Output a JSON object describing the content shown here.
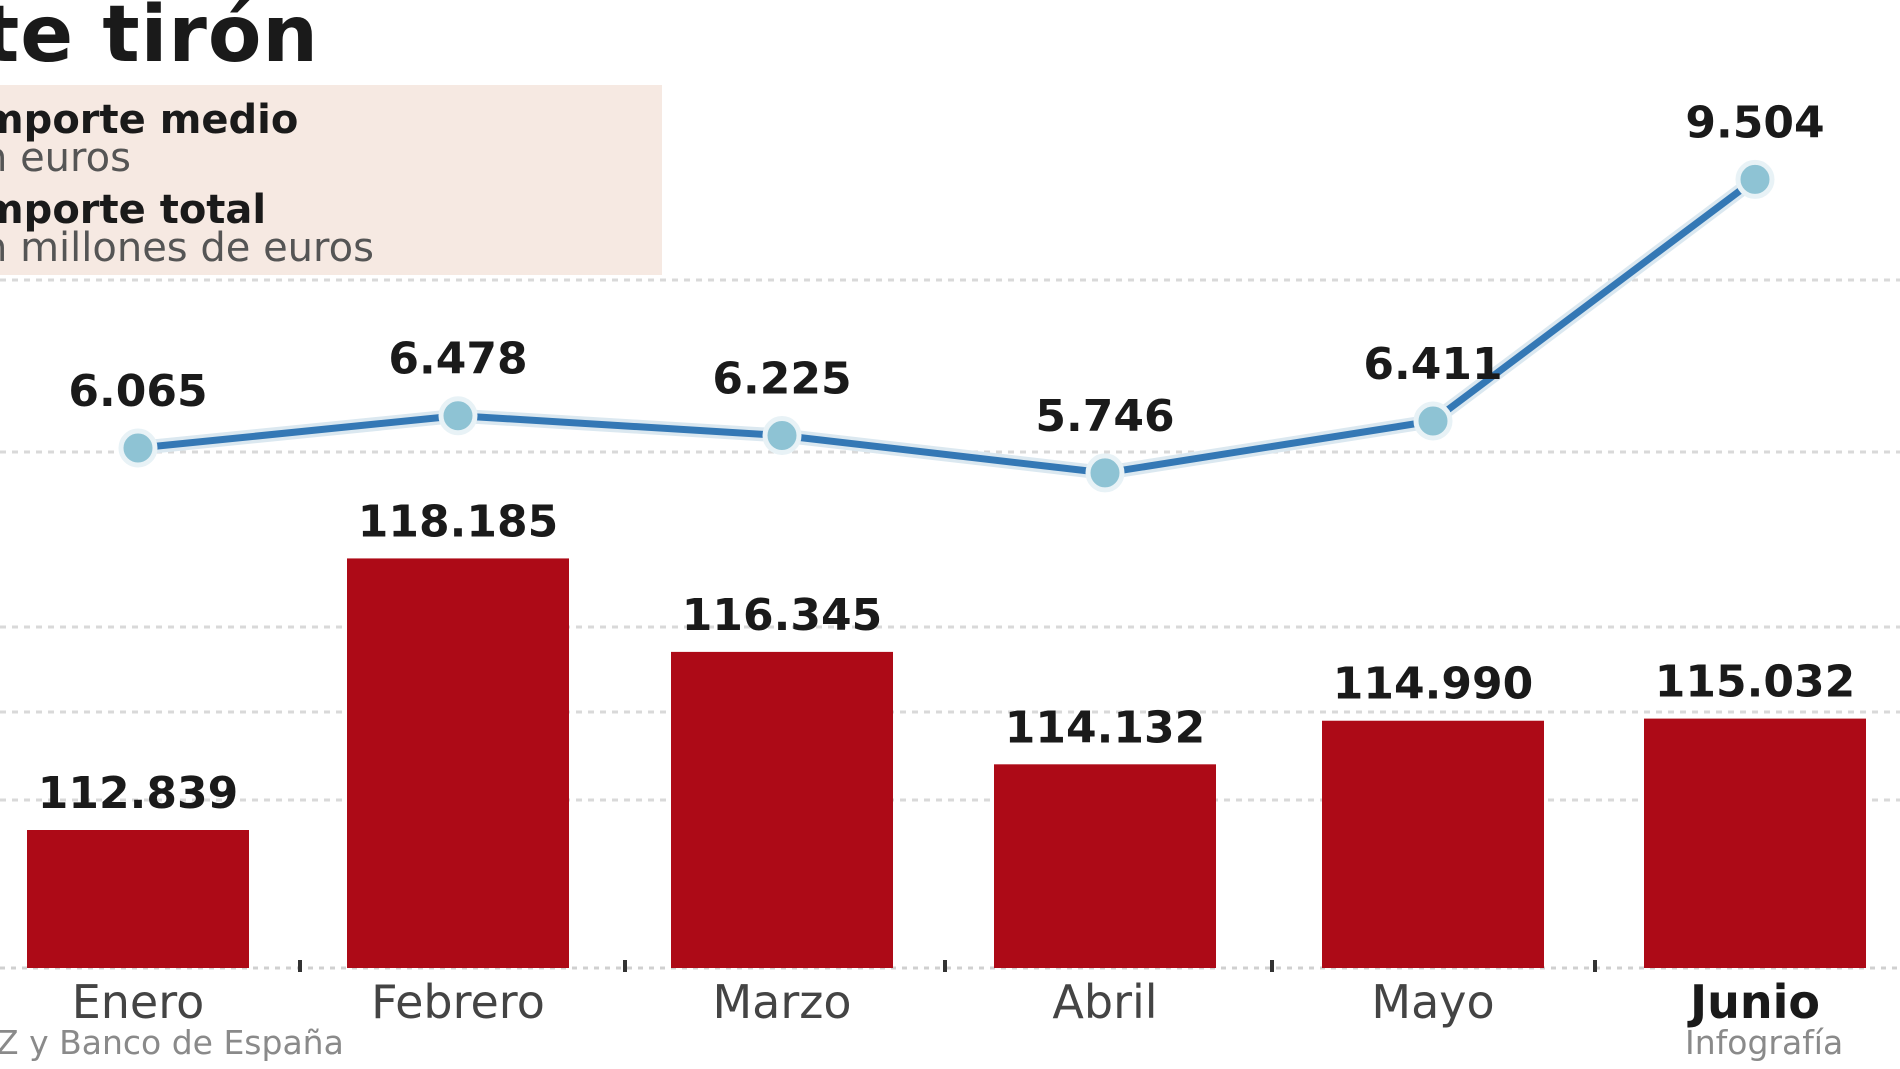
{
  "title": "te tirón",
  "legend": {
    "line_label": "mporte medio",
    "line_unit": "n euros",
    "bar_label": "mporte total",
    "bar_unit": "n millones de euros"
  },
  "footer": {
    "source": "Z y Banco de España",
    "credit": "Infografía"
  },
  "colors": {
    "bar": "#ad0a17",
    "line": "#3478b5",
    "marker": "#8ec3d4",
    "legend_bg": "#f6e9e2",
    "grid": "#d9d9d9"
  },
  "chart_data": {
    "type": "bar",
    "categories": [
      "Enero",
      "Febrero",
      "Marzo",
      "Abril",
      "Mayo",
      "Junio"
    ],
    "series": [
      {
        "type": "bar",
        "values": [
          112839,
          118185,
          116345,
          114132,
          114990,
          115032
        ],
        "labels": [
          "112.839",
          "118.185",
          "116.345",
          "114.132",
          "114.990",
          "115.032"
        ]
      },
      {
        "type": "line",
        "values": [
          6065,
          6478,
          6225,
          5746,
          6411,
          9504
        ],
        "labels": [
          "6.065",
          "6.478",
          "6.225",
          "5.746",
          "6.411",
          "9.504"
        ]
      }
    ],
    "grid": true,
    "legend_position": "top-left"
  }
}
